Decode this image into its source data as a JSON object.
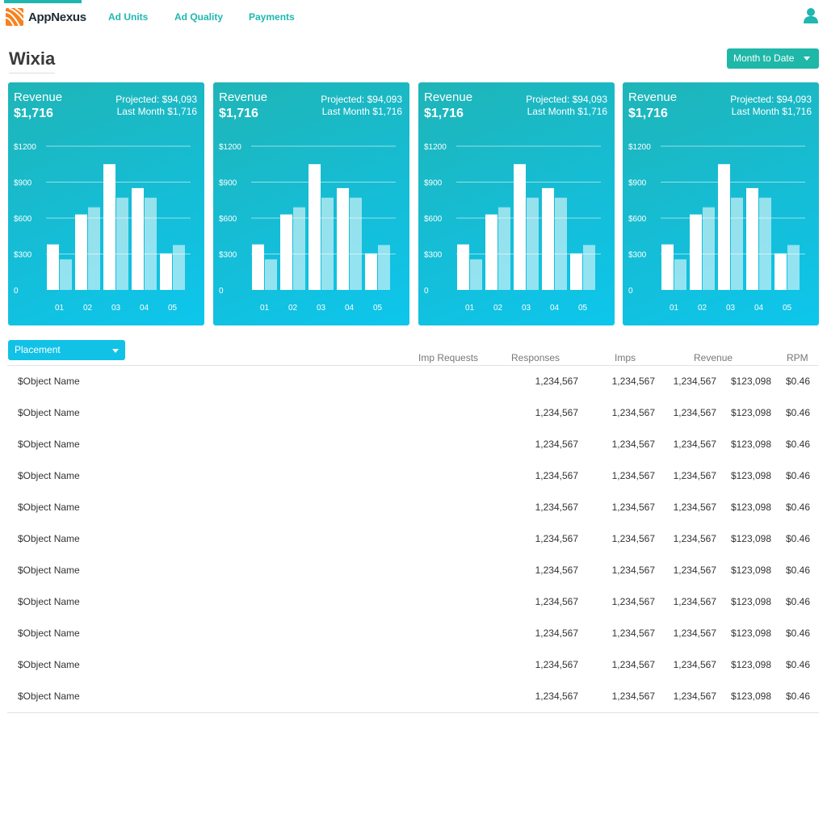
{
  "nav": {
    "logo_text": "AppNexus",
    "links": [
      "Ad Units",
      "Ad Quality",
      "Payments"
    ],
    "accent": "#1fb7b0",
    "logo_color": "#f58220",
    "user_icon": "user-icon"
  },
  "page": {
    "title": "Wixia",
    "date_range": "Month to Date"
  },
  "cards": [
    {
      "title": "Revenue",
      "value": "$1,716",
      "projected": "Projected: $94,093",
      "last_month": "Last Month $1,716"
    },
    {
      "title": "Revenue",
      "value": "$1,716",
      "projected": "Projected: $94,093",
      "last_month": "Last Month $1,716"
    },
    {
      "title": "Revenue",
      "value": "$1,716",
      "projected": "Projected: $94,093",
      "last_month": "Last Month $1,716"
    },
    {
      "title": "Revenue",
      "value": "$1,716",
      "projected": "Projected: $94,093",
      "last_month": "Last Month $1,716"
    }
  ],
  "chart_data": [
    {
      "type": "bar",
      "categories": [
        "01",
        "02",
        "03",
        "04",
        "05"
      ],
      "series": [
        {
          "values": [
            380,
            630,
            1050,
            850,
            305
          ]
        },
        {
          "values": [
            255,
            690,
            770,
            770,
            375
          ]
        }
      ],
      "y_ticks": [
        "0",
        "$300",
        "$600",
        "$900",
        "$1200"
      ],
      "ylim": [
        0,
        1200
      ],
      "grid": true
    },
    {
      "type": "bar",
      "categories": [
        "01",
        "02",
        "03",
        "04",
        "05"
      ],
      "series": [
        {
          "values": [
            380,
            630,
            1050,
            850,
            305
          ]
        },
        {
          "values": [
            255,
            690,
            770,
            770,
            375
          ]
        }
      ],
      "y_ticks": [
        "0",
        "$300",
        "$600",
        "$900",
        "$1200"
      ],
      "ylim": [
        0,
        1200
      ],
      "grid": true
    },
    {
      "type": "bar",
      "categories": [
        "01",
        "02",
        "03",
        "04",
        "05"
      ],
      "series": [
        {
          "values": [
            380,
            630,
            1050,
            850,
            305
          ]
        },
        {
          "values": [
            255,
            690,
            770,
            770,
            375
          ]
        }
      ],
      "y_ticks": [
        "0",
        "$300",
        "$600",
        "$900",
        "$1200"
      ],
      "ylim": [
        0,
        1200
      ],
      "grid": true
    },
    {
      "type": "bar",
      "categories": [
        "01",
        "02",
        "03",
        "04",
        "05"
      ],
      "series": [
        {
          "values": [
            380,
            630,
            1050,
            850,
            305
          ]
        },
        {
          "values": [
            255,
            690,
            770,
            770,
            375
          ]
        }
      ],
      "y_ticks": [
        "0",
        "$300",
        "$600",
        "$900",
        "$1200"
      ],
      "ylim": [
        0,
        1200
      ],
      "grid": true
    }
  ],
  "table": {
    "filter": "Placement",
    "headers": [
      "Imp Requests",
      "Responses",
      "Imps",
      "Revenue",
      "RPM"
    ],
    "rows": [
      [
        "$Object Name",
        "1,234,567",
        "1,234,567",
        "1,234,567",
        "$123,098",
        "$0.46"
      ],
      [
        "$Object Name",
        "1,234,567",
        "1,234,567",
        "1,234,567",
        "$123,098",
        "$0.46"
      ],
      [
        "$Object Name",
        "1,234,567",
        "1,234,567",
        "1,234,567",
        "$123,098",
        "$0.46"
      ],
      [
        "$Object Name",
        "1,234,567",
        "1,234,567",
        "1,234,567",
        "$123,098",
        "$0.46"
      ],
      [
        "$Object Name",
        "1,234,567",
        "1,234,567",
        "1,234,567",
        "$123,098",
        "$0.46"
      ],
      [
        "$Object Name",
        "1,234,567",
        "1,234,567",
        "1,234,567",
        "$123,098",
        "$0.46"
      ],
      [
        "$Object Name",
        "1,234,567",
        "1,234,567",
        "1,234,567",
        "$123,098",
        "$0.46"
      ],
      [
        "$Object Name",
        "1,234,567",
        "1,234,567",
        "1,234,567",
        "$123,098",
        "$0.46"
      ],
      [
        "$Object Name",
        "1,234,567",
        "1,234,567",
        "1,234,567",
        "$123,098",
        "$0.46"
      ],
      [
        "$Object Name",
        "1,234,567",
        "1,234,567",
        "1,234,567",
        "$123,098",
        "$0.46"
      ],
      [
        "$Object Name",
        "1,234,567",
        "1,234,567",
        "1,234,567",
        "$123,098",
        "$0.46"
      ]
    ]
  }
}
